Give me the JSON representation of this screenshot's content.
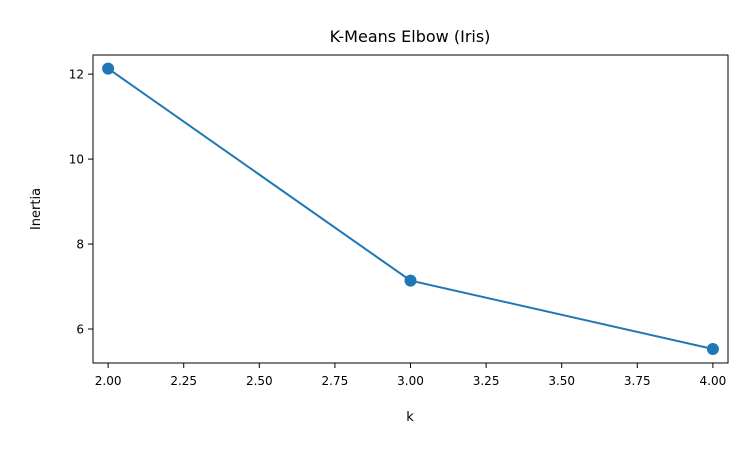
{
  "chart_data": {
    "type": "line",
    "title": "K-Means Elbow (Iris)",
    "xlabel": "k",
    "ylabel": "Inertia",
    "xlim": [
      1.95,
      4.05
    ],
    "ylim": [
      5.2,
      12.45
    ],
    "xticks": [
      2.0,
      2.25,
      2.5,
      2.75,
      3.0,
      3.25,
      3.5,
      3.75,
      4.0
    ],
    "xtick_labels": [
      "2.00",
      "2.25",
      "2.50",
      "2.75",
      "3.00",
      "3.25",
      "3.50",
      "3.75",
      "4.00"
    ],
    "yticks": [
      6,
      8,
      10,
      12
    ],
    "ytick_labels": [
      "6",
      "8",
      "10",
      "12"
    ],
    "grid": false,
    "series": [
      {
        "color": "#1f77b4",
        "marker": "circle",
        "x": [
          2,
          3,
          4
        ],
        "y": [
          12.13,
          7.14,
          5.53
        ]
      }
    ]
  }
}
